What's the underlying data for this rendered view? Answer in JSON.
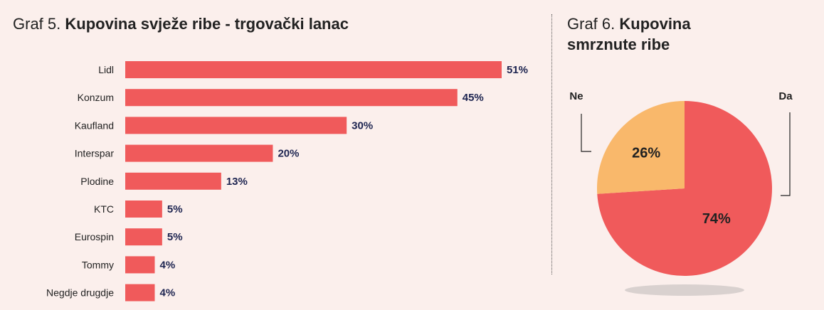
{
  "chart_data": [
    {
      "type": "bar",
      "orientation": "horizontal",
      "title_prefix": "Graf 5.",
      "title": "Kupovina svježe ribe - trgovački lanac",
      "categories": [
        "Lidl",
        "Konzum",
        "Kaufland",
        "Interspar",
        "Plodine",
        "KTC",
        "Eurospin",
        "Tommy",
        "Negdje drugdje"
      ],
      "values": [
        51,
        45,
        30,
        20,
        13,
        5,
        5,
        4,
        4
      ],
      "value_labels": [
        "51%",
        "45%",
        "30%",
        "20%",
        "13%",
        "5%",
        "5%",
        "4%",
        "4%"
      ],
      "unit": "%",
      "xlim": [
        0,
        51
      ],
      "grid": false,
      "color": "#f05a5b"
    },
    {
      "type": "pie",
      "title_prefix": "Graf 6.",
      "title": "Kupovina smrznute ribe",
      "slices": [
        {
          "label": "Da",
          "value": 74,
          "value_label": "74%",
          "color": "#f05a5b"
        },
        {
          "label": "Ne",
          "value": 26,
          "value_label": "26%",
          "color": "#f9b86b"
        }
      ]
    }
  ]
}
